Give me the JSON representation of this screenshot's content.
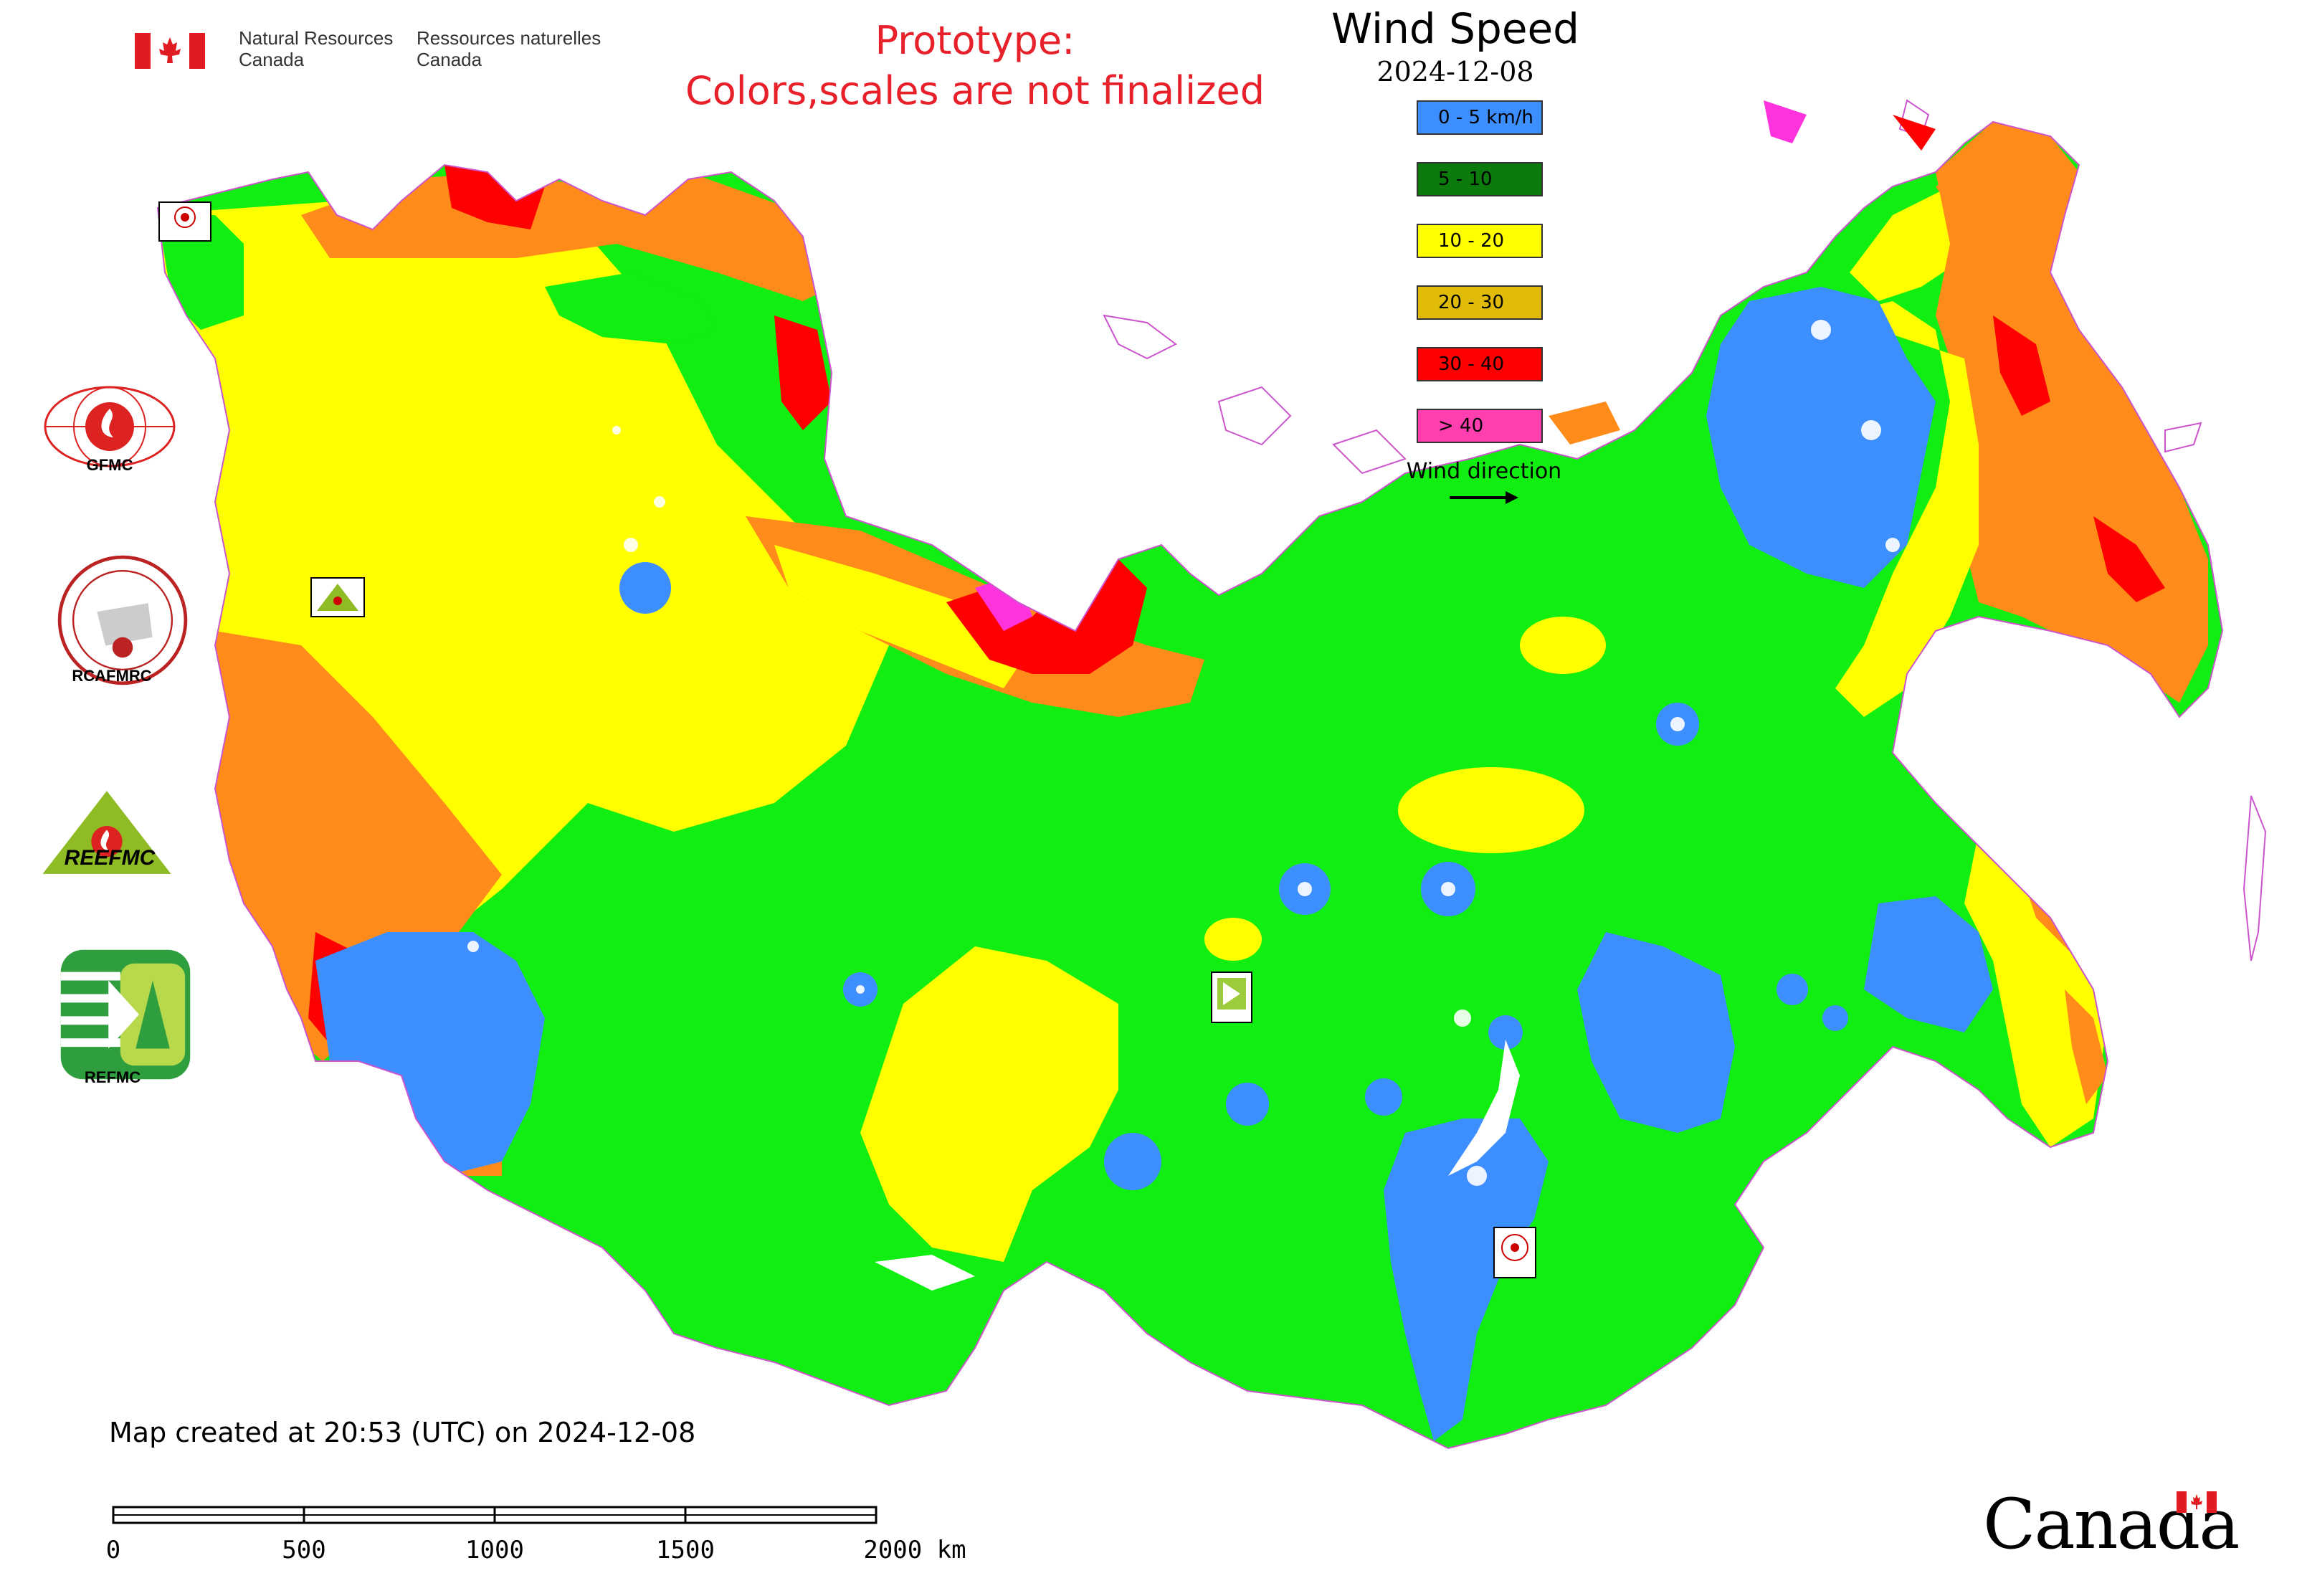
{
  "header": {
    "nrcan_en": [
      "Natural Resources",
      "Canada"
    ],
    "nrcan_fr": [
      "Ressources naturelles",
      "Canada"
    ],
    "prototype_line1": "Prototype:",
    "prototype_line2": "Colors,scales are not finalized"
  },
  "legend": {
    "title": "Wind Speed",
    "date": "2024-12-08",
    "classes": [
      {
        "label": "0 - 5 km/h",
        "color": "#3d8eff"
      },
      {
        "label": "5 - 10",
        "color": "#0d7a0d"
      },
      {
        "label": "10 - 20",
        "color": "#ffff00"
      },
      {
        "label": "20 - 30",
        "color": "#e0bb0a"
      },
      {
        "label": "30 - 40",
        "color": "#ff0000"
      },
      {
        "label": "> 40",
        "color": "#ff3fb0"
      }
    ],
    "wind_direction_label": "Wind direction"
  },
  "map_colors": {
    "calm": "#3d8eff",
    "light": "#11ee11",
    "moderate": "#ffff00",
    "fresh": "#ff8c1a",
    "strong": "#ff0000",
    "gale": "#ff33dd",
    "boundary": "#cc55cc"
  },
  "organizations": [
    {
      "label": "GFMC"
    },
    {
      "label": "RCAFMRC"
    },
    {
      "label": "REEFMC"
    },
    {
      "label": "REFMC"
    }
  ],
  "footer": {
    "created": "Map created at 20:53 (UTC) on 2024-12-08",
    "canada_wordmark": "Canada"
  },
  "scale_bar": {
    "labels": [
      "0",
      "500",
      "1000",
      "1500",
      "2000 km"
    ],
    "values_km": [
      0,
      500,
      1000,
      1500,
      2000
    ]
  }
}
